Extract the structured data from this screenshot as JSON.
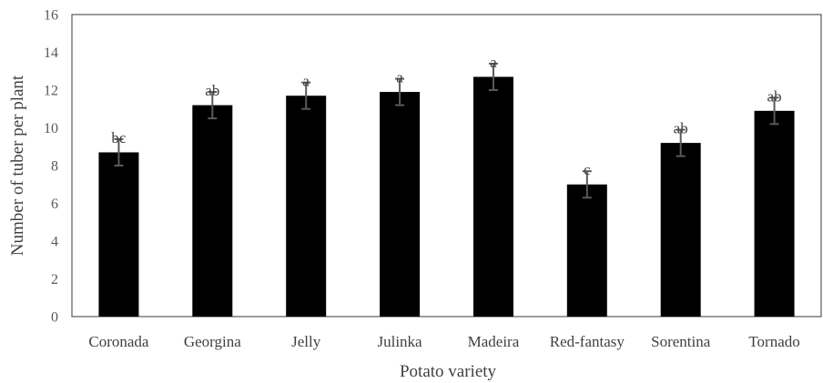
{
  "chart_data": {
    "type": "bar",
    "title": "",
    "xlabel": "Potato variety",
    "ylabel": "Number of tuber per plant",
    "ylim": [
      0,
      16
    ],
    "yticks": [
      0,
      2,
      4,
      6,
      8,
      10,
      12,
      14,
      16
    ],
    "grid": false,
    "legend": "none",
    "bar_color": "#000000",
    "error_bar_color": "#595959",
    "categories": [
      "Coronada",
      "Georgina",
      "Jelly",
      "Julinka",
      "Madeira",
      "Red-fantasy",
      "Sorentina",
      "Tornado"
    ],
    "values": [
      8.7,
      11.2,
      11.7,
      11.9,
      12.7,
      7.0,
      9.2,
      10.9
    ],
    "errors": [
      0.7,
      0.7,
      0.7,
      0.7,
      0.7,
      0.7,
      0.7,
      0.7
    ],
    "significance_letters": [
      "bc",
      "ab",
      "a",
      "a",
      "a",
      "c",
      "ab",
      "ab"
    ]
  }
}
